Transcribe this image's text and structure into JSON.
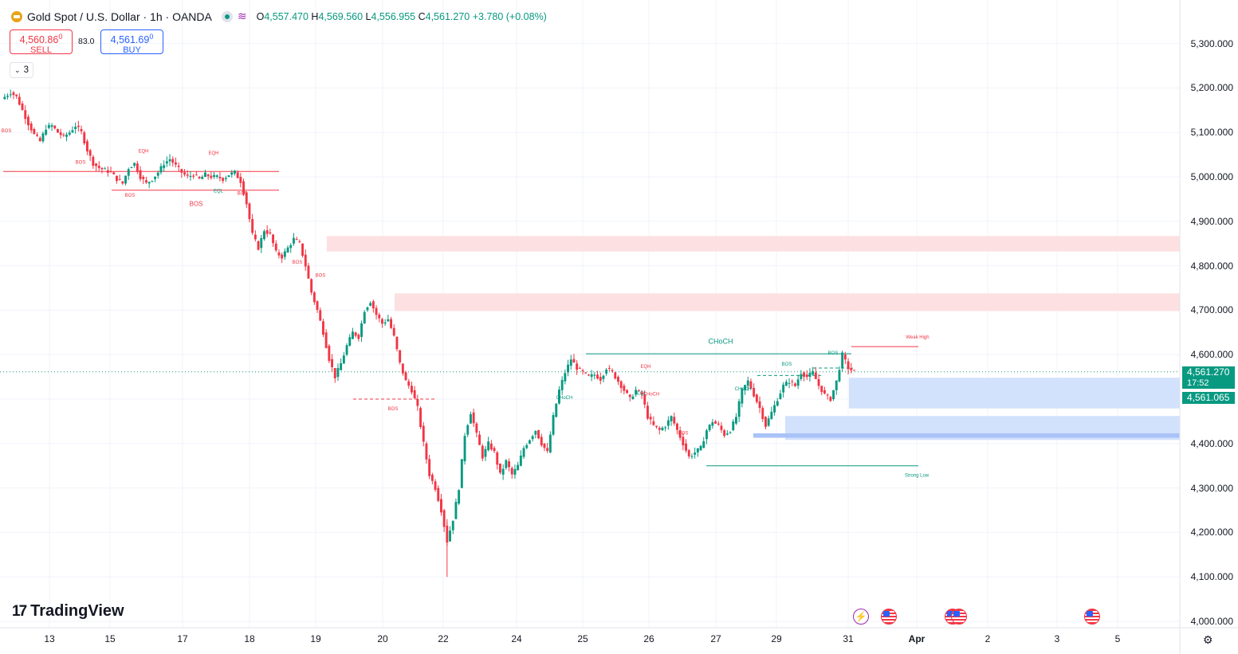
{
  "header": {
    "symbol_title": "Gold Spot / U.S. Dollar · 1h · OANDA",
    "open_label": "O",
    "open": "4,557.470",
    "high_label": "H",
    "high": "4,569.560",
    "low_label": "L",
    "low": "4,556.955",
    "close_label": "C",
    "close": "4,561.270",
    "change": "+3.780 (+0.08%)"
  },
  "trade": {
    "sell_price": "4,560.86",
    "sell_price_sup": "0",
    "sell_label": "SELL",
    "spread": "83.0",
    "buy_price": "4,561.69",
    "buy_price_sup": "0",
    "buy_label": "BUY",
    "indicators_count": "3"
  },
  "branding": {
    "logo_text": "TradingView"
  },
  "colors": {
    "up": "#089981",
    "down": "#f23645",
    "bearish_zone": "#fde0e2",
    "bullish_zone": "#d2e1fc",
    "bullish_zone_dark": "#a9c3f7",
    "background": "#ffffff",
    "grid": "#f0f3fa"
  },
  "icons": [
    "gold-coin-icon",
    "market-open-dot-icon",
    "wave-icon",
    "chevron-down-icon",
    "us-flag-event-icon",
    "lightning-event-icon",
    "settings-gear-icon"
  ],
  "price_axis": {
    "labels": [
      "5,300.000",
      "5,200.000",
      "5,100.000",
      "5,000.000",
      "4,900.000",
      "4,800.000",
      "4,700.000",
      "4,600.000",
      "4,500.000",
      "4,400.000",
      "4,300.000",
      "4,200.000",
      "4,100.000",
      "4,000.000"
    ],
    "last_price": "4,561.270",
    "countdown": "17:52",
    "second_price": "4,561.065"
  },
  "time_axis": {
    "labels": [
      "13",
      "15",
      "17",
      "18",
      "19",
      "20",
      "22",
      "24",
      "25",
      "26",
      "27",
      "29",
      "31",
      "Apr",
      "2",
      "3",
      "5"
    ]
  },
  "chart_data": {
    "type": "candlestick",
    "title": "Gold Spot / U.S. Dollar · 1h · OANDA",
    "ylim": [
      4000,
      5320
    ],
    "y_ticks": [
      4000,
      4100,
      4200,
      4300,
      4400,
      4500,
      4600,
      4700,
      4800,
      4900,
      5000,
      5100,
      5200,
      5300
    ],
    "x_ticks": [
      "13",
      "15",
      "17",
      "18",
      "19",
      "20",
      "22",
      "24",
      "25",
      "26",
      "27",
      "29",
      "31",
      "Apr",
      "2",
      "3",
      "5"
    ],
    "last_price": 4561.27,
    "price_path": [
      [
        0,
        5180
      ],
      [
        2,
        5190
      ],
      [
        4,
        5180
      ],
      [
        6,
        5150
      ],
      [
        8,
        5120
      ],
      [
        10,
        5095
      ],
      [
        12,
        5080
      ],
      [
        14,
        5110
      ],
      [
        16,
        5115
      ],
      [
        18,
        5100
      ],
      [
        20,
        5090
      ],
      [
        22,
        5100
      ],
      [
        24,
        5115
      ],
      [
        26,
        5100
      ],
      [
        28,
        5060
      ],
      [
        30,
        5030
      ],
      [
        32,
        5020
      ],
      [
        34,
        5015
      ],
      [
        36,
        5010
      ],
      [
        38,
        4995
      ],
      [
        40,
        4985
      ],
      [
        42,
        5020
      ],
      [
        44,
        5030
      ],
      [
        46,
        5000
      ],
      [
        48,
        4985
      ],
      [
        50,
        4995
      ],
      [
        52,
        5010
      ],
      [
        54,
        5030
      ],
      [
        56,
        5040
      ],
      [
        58,
        5025
      ],
      [
        60,
        5010
      ],
      [
        62,
        5000
      ],
      [
        64,
        5005
      ],
      [
        66,
        4995
      ],
      [
        68,
        5005
      ],
      [
        70,
        5000
      ],
      [
        72,
        5000
      ],
      [
        74,
        4995
      ],
      [
        76,
        5005
      ],
      [
        78,
        5010
      ],
      [
        80,
        4990
      ],
      [
        82,
        4940
      ],
      [
        84,
        4870
      ],
      [
        86,
        4840
      ],
      [
        88,
        4880
      ],
      [
        90,
        4870
      ],
      [
        92,
        4830
      ],
      [
        94,
        4820
      ],
      [
        96,
        4840
      ],
      [
        98,
        4860
      ],
      [
        100,
        4850
      ],
      [
        102,
        4800
      ],
      [
        104,
        4740
      ],
      [
        106,
        4700
      ],
      [
        108,
        4650
      ],
      [
        110,
        4590
      ],
      [
        112,
        4550
      ],
      [
        114,
        4580
      ],
      [
        116,
        4620
      ],
      [
        118,
        4650
      ],
      [
        120,
        4640
      ],
      [
        122,
        4700
      ],
      [
        124,
        4720
      ],
      [
        126,
        4690
      ],
      [
        128,
        4670
      ],
      [
        130,
        4680
      ],
      [
        132,
        4640
      ],
      [
        134,
        4580
      ],
      [
        136,
        4540
      ],
      [
        138,
        4520
      ],
      [
        140,
        4480
      ],
      [
        142,
        4400
      ],
      [
        144,
        4330
      ],
      [
        146,
        4300
      ],
      [
        148,
        4250
      ],
      [
        150,
        4180
      ],
      [
        152,
        4230
      ],
      [
        154,
        4300
      ],
      [
        156,
        4420
      ],
      [
        158,
        4470
      ],
      [
        160,
        4420
      ],
      [
        162,
        4370
      ],
      [
        164,
        4400
      ],
      [
        166,
        4380
      ],
      [
        168,
        4330
      ],
      [
        170,
        4360
      ],
      [
        172,
        4330
      ],
      [
        174,
        4350
      ],
      [
        176,
        4390
      ],
      [
        178,
        4410
      ],
      [
        180,
        4430
      ],
      [
        182,
        4400
      ],
      [
        184,
        4380
      ],
      [
        186,
        4460
      ],
      [
        188,
        4520
      ],
      [
        190,
        4560
      ],
      [
        192,
        4590
      ],
      [
        194,
        4570
      ],
      [
        196,
        4560
      ],
      [
        198,
        4550
      ],
      [
        200,
        4555
      ],
      [
        202,
        4545
      ],
      [
        204,
        4570
      ],
      [
        206,
        4560
      ],
      [
        208,
        4540
      ],
      [
        210,
        4520
      ],
      [
        212,
        4500
      ],
      [
        214,
        4520
      ],
      [
        216,
        4510
      ],
      [
        218,
        4460
      ],
      [
        220,
        4440
      ],
      [
        222,
        4430
      ],
      [
        224,
        4440
      ],
      [
        226,
        4460
      ],
      [
        228,
        4430
      ],
      [
        230,
        4400
      ],
      [
        232,
        4370
      ],
      [
        234,
        4380
      ],
      [
        236,
        4390
      ],
      [
        238,
        4430
      ],
      [
        240,
        4450
      ],
      [
        242,
        4440
      ],
      [
        244,
        4420
      ],
      [
        246,
        4430
      ],
      [
        248,
        4460
      ],
      [
        250,
        4520
      ],
      [
        252,
        4540
      ],
      [
        254,
        4510
      ],
      [
        256,
        4480
      ],
      [
        258,
        4440
      ],
      [
        260,
        4470
      ],
      [
        262,
        4500
      ],
      [
        264,
        4530
      ],
      [
        266,
        4540
      ],
      [
        268,
        4530
      ],
      [
        270,
        4560
      ],
      [
        272,
        4550
      ],
      [
        274,
        4560
      ],
      [
        276,
        4530
      ],
      [
        278,
        4510
      ],
      [
        280,
        4500
      ],
      [
        282,
        4540
      ],
      [
        284,
        4600
      ],
      [
        286,
        4570
      ],
      [
        288,
        4561.27
      ]
    ],
    "zones": [
      {
        "kind": "supply",
        "low": 4832,
        "high": 4867
      },
      {
        "kind": "supply",
        "low": 4698,
        "high": 4738
      },
      {
        "kind": "demand",
        "low": 4479,
        "high": 4548
      },
      {
        "kind": "demand",
        "low": 4408,
        "high": 4462
      }
    ],
    "structure_levels": [
      {
        "label": "BOS",
        "price": 4970
      },
      {
        "label": "BOS",
        "price": 4500
      },
      {
        "label": "CHoCH",
        "price": 4602
      },
      {
        "label": "Weak High",
        "price": 4618
      },
      {
        "label": "Strong Low",
        "price": 4350
      }
    ],
    "annotations": [
      "BOS",
      "EQH",
      "EQH",
      "BOS",
      "BOS",
      "EQL",
      "BOS",
      "BOS",
      "BOS",
      "BOS",
      "BOS",
      "CHoCH",
      "EQH",
      "EQL",
      "CHoCH",
      "BOS",
      "CHoCH",
      "BOS",
      "BOS",
      "CHoCH",
      "Weak High",
      "Strong Low"
    ]
  }
}
